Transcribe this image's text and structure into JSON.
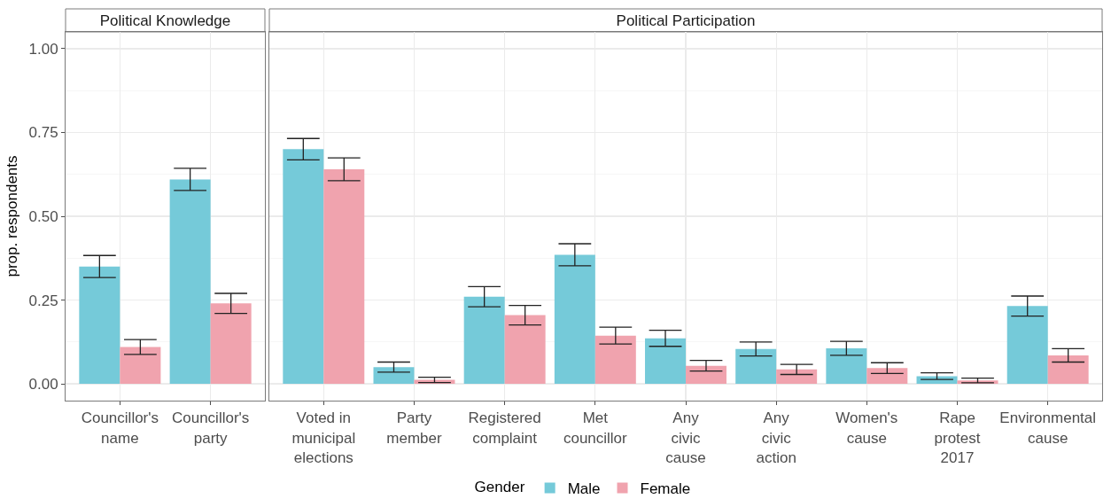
{
  "chart_data": [
    {
      "type": "bar",
      "title": "Political Knowledge",
      "ylabel": "prop. respondents",
      "categories": [
        "Councillor's name",
        "Councillor's party"
      ],
      "series": [
        {
          "color": "#75cad9",
          "values": [
            0.35,
            0.61
          ],
          "errors": [
            0.033,
            0.033
          ]
        },
        {
          "color": "#f0a3ae",
          "values": [
            0.11,
            0.24
          ],
          "errors": [
            0.022,
            0.03
          ]
        }
      ],
      "ylim": [
        -0.05,
        1.05
      ],
      "yticks": [
        {
          "value": 0,
          "label": "0.00"
        },
        {
          "value": 0.25,
          "label": "0.25"
        },
        {
          "value": 0.5,
          "label": "0.50"
        },
        {
          "value": 0.75,
          "label": "0.75"
        },
        {
          "value": 1,
          "label": "1.00"
        }
      ],
      "grid": true
    },
    {
      "type": "bar",
      "title": "Political Participation",
      "categories": [
        "Voted in municipal elections",
        "Party member",
        "Registered complaint",
        "Met councillor",
        "Any civic cause",
        "Any civic action",
        "Women's cause",
        "Rape protest 2017",
        "Environmental cause"
      ],
      "series": [
        {
          "name": "Male",
          "color": "#75cad9",
          "values": [
            0.7,
            0.05,
            0.26,
            0.385,
            0.136,
            0.104,
            0.106,
            0.023,
            0.232
          ],
          "errors": [
            0.032,
            0.015,
            0.03,
            0.033,
            0.024,
            0.021,
            0.021,
            0.01,
            0.03
          ]
        },
        {
          "name": "Female",
          "color": "#f0a3ae",
          "values": [
            0.64,
            0.012,
            0.205,
            0.144,
            0.054,
            0.043,
            0.047,
            0.01,
            0.085
          ],
          "errors": [
            0.034,
            0.008,
            0.029,
            0.025,
            0.016,
            0.015,
            0.016,
            0.007,
            0.02
          ]
        }
      ],
      "ylim": [
        -0.05,
        1.05
      ],
      "yticks": [
        0,
        0.25,
        0.5,
        0.75,
        1
      ],
      "grid": true,
      "tick_labels": "x",
      "legend": "bottom",
      "legend_title": "Gender"
    }
  ]
}
